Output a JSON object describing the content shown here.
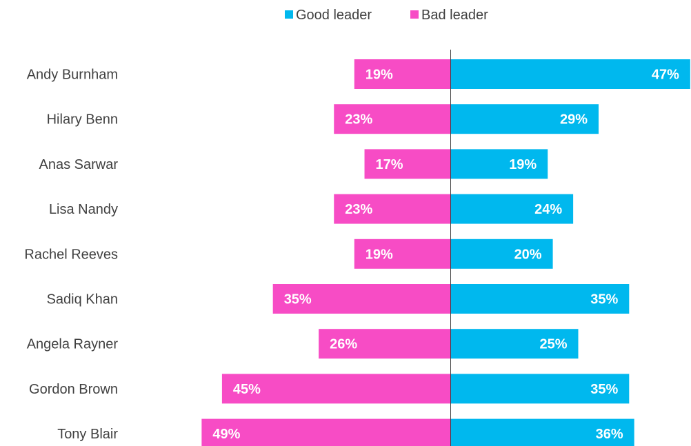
{
  "chart_data": {
    "type": "bar",
    "orientation": "horizontal-diverging",
    "categories": [
      "Andy Burnham",
      "Hilary Benn",
      "Anas Sarwar",
      "Lisa Nandy",
      "Rachel Reeves",
      "Sadiq Khan",
      "Angela Rayner",
      "Gordon Brown",
      "Tony Blair"
    ],
    "series": [
      {
        "name": "Good leader",
        "color": "#00B8EE",
        "values": [
          47,
          29,
          19,
          24,
          20,
          35,
          25,
          35,
          36
        ],
        "labels": [
          "47%",
          "29%",
          "19%",
          "24%",
          "20%",
          "35%",
          "25%",
          "35%",
          "36%"
        ]
      },
      {
        "name": "Bad leader",
        "color": "#F74CC5",
        "values": [
          19,
          23,
          17,
          23,
          19,
          35,
          26,
          45,
          49
        ],
        "labels": [
          "19%",
          "23%",
          "17%",
          "23%",
          "19%",
          "35%",
          "26%",
          "45%",
          "49%"
        ]
      }
    ],
    "legend_position": "top-center",
    "grid": false,
    "unit": "%"
  }
}
